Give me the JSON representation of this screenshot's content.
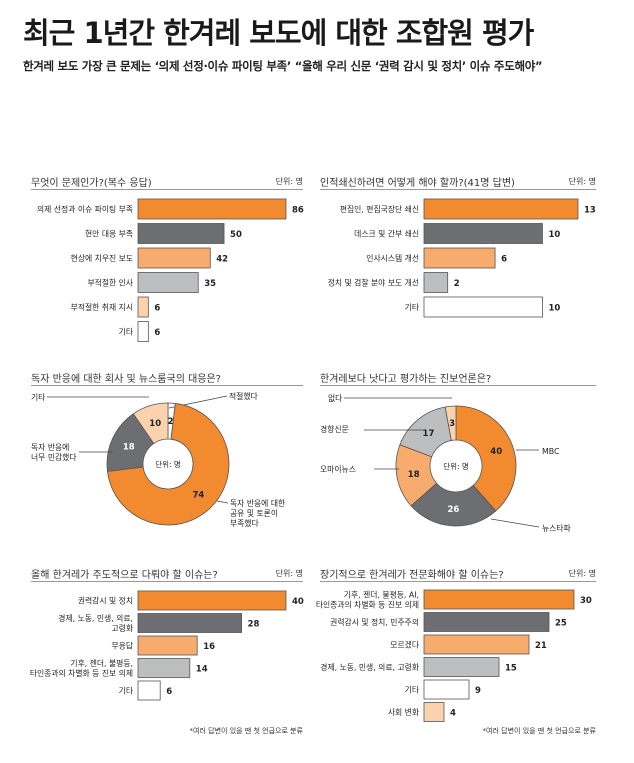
{
  "header": {
    "title": "최근 1년간 한겨레 보도에 대한 조합원 평가",
    "subtitle": "한겨레 보도 가장 큰 문제는 ‘의제 선정·이슈 파이팅 부족’ “올해 우리 신문 ‘권력 감시 및 정치’ 이슈 주도해야”"
  },
  "colors": {
    "orange": "#f28a30",
    "dark": "#6d6e71",
    "light_orange": "#f7ac6e",
    "gray": "#bcbec0",
    "lightest_orange": "#fbd2ae",
    "white": "#ffffff"
  },
  "chart_data": [
    {
      "type": "bar",
      "title": "무엇이 문제인가?(복수 응답)",
      "unit": "단위: 명",
      "categories": [
        "의제 선정과 이슈 파이팅 부족",
        "현안 대응 부족",
        "현상에 치우진 보도",
        "부적절한 인사",
        "부적절한 취재 지시",
        "기타"
      ],
      "values": [
        86,
        50,
        42,
        35,
        6,
        6
      ],
      "colors": [
        "#f28a30",
        "#6d6e71",
        "#f7ac6e",
        "#bcbec0",
        "#fbd2ae",
        "#ffffff"
      ]
    },
    {
      "type": "bar",
      "title": "인적쇄신하려면 어떻게 해야 할까?(41명 답변)",
      "unit": "단위: 명",
      "categories": [
        "편집인, 편집국장단 쇄신",
        "데스크 및 간부 쇄신",
        "인사시스템 개선",
        "정치 및 검찰 분야 보도 개선",
        "기타"
      ],
      "values": [
        13,
        10,
        6,
        2,
        10
      ],
      "colors": [
        "#f28a30",
        "#6d6e71",
        "#f7ac6e",
        "#bcbec0",
        "#ffffff"
      ]
    },
    {
      "type": "pie",
      "title": "독자 반응에 대한 회사 및 뉴스룸국의 대응은?",
      "center_label": "단위: 명",
      "slices": [
        {
          "label": "적절했다",
          "value": 2,
          "color": "#ffffff"
        },
        {
          "label": "독자 반응에 대한 공유 및 토론이 부족했다",
          "value": 74,
          "color": "#f28a30"
        },
        {
          "label": "독자 반응에 너무 민감했다",
          "value": 18,
          "color": "#6d6e71"
        },
        {
          "label": "기타",
          "value": 10,
          "color": "#fbd2ae"
        }
      ]
    },
    {
      "type": "pie",
      "title": "한겨레보다 낫다고 평가하는 진보언론은?",
      "center_label": "단위: 명",
      "slices": [
        {
          "label": "MBC",
          "value": 40,
          "color": "#f28a30"
        },
        {
          "label": "뉴스타파",
          "value": 26,
          "color": "#6d6e71"
        },
        {
          "label": "오마이뉴스",
          "value": 18,
          "color": "#f7ac6e"
        },
        {
          "label": "경향신문",
          "value": 17,
          "color": "#bcbec0"
        },
        {
          "label": "없다",
          "value": 3,
          "color": "#fbd2ae"
        }
      ]
    },
    {
      "type": "bar",
      "title": "올해 한겨레가 주도적으로 다뤄야 할 이슈는?",
      "unit": "단위: 명",
      "categories": [
        "권력감시 및 정치",
        "경제, 노동, 민생, 의료, 고령화",
        "무응답",
        "기후, 젠더, 불평등, 타인종과의 차별화 등 진보 의제",
        "기타"
      ],
      "values": [
        40,
        28,
        16,
        14,
        6
      ],
      "colors": [
        "#f28a30",
        "#6d6e71",
        "#f7ac6e",
        "#bcbec0",
        "#ffffff"
      ],
      "note": "*여러 답변이 있을 땐 첫 언급으로 분류"
    },
    {
      "type": "bar",
      "title": "장기적으로 한겨레가 전문화해야 할 이슈는?",
      "unit": "단위: 명",
      "categories": [
        "기후, 젠더, 불평등, AI, 타인종과의 차별화 등 진보 의제",
        "권력감시 및 정치, 민주주의",
        "모르겠다",
        "경제, 노동, 민생, 의료, 고령화",
        "기타",
        "사회 변화"
      ],
      "values": [
        30,
        25,
        21,
        15,
        9,
        4
      ],
      "colors": [
        "#f28a30",
        "#6d6e71",
        "#f7ac6e",
        "#bcbec0",
        "#ffffff",
        "#fbd2ae"
      ],
      "note": "*여러 답변이 있을 땐 첫 언급으로 분류"
    }
  ]
}
